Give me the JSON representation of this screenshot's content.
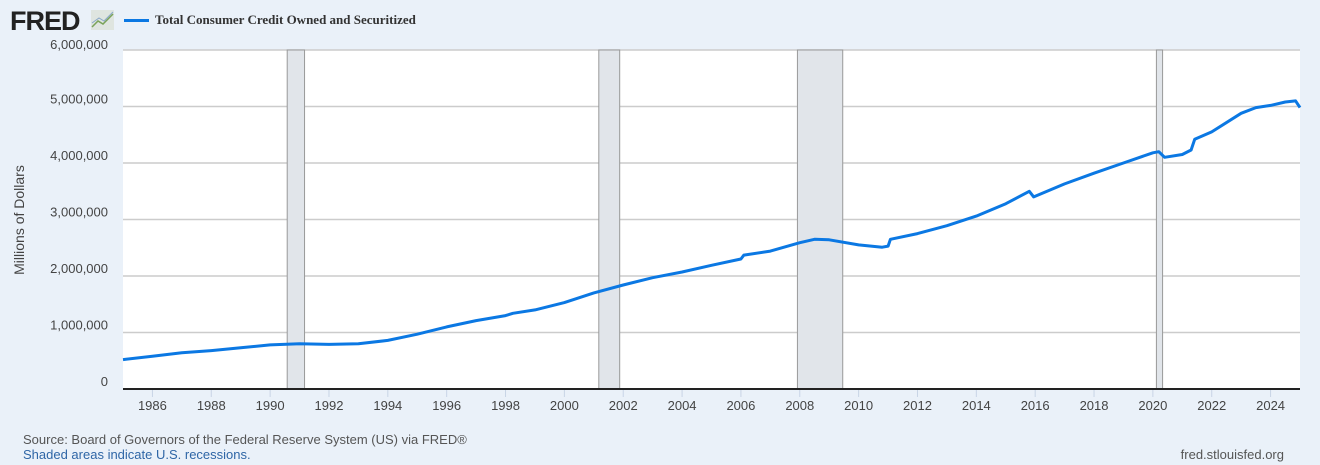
{
  "logo": {
    "text": "FRED"
  },
  "chart_data": {
    "type": "line",
    "title": "Total Consumer Credit Owned and Securitized",
    "xlabel": "",
    "ylabel": "Millions of Dollars",
    "xlim": [
      1985.0,
      2025.0
    ],
    "ylim": [
      0,
      6000000
    ],
    "yticks": [
      0,
      1000000,
      2000000,
      3000000,
      4000000,
      5000000,
      6000000
    ],
    "ytick_labels": [
      "0",
      "1,000,000",
      "2,000,000",
      "3,000,000",
      "4,000,000",
      "5,000,000",
      "6,000,000"
    ],
    "xticks": [
      1986,
      1988,
      1990,
      1992,
      1994,
      1996,
      1998,
      2000,
      2002,
      2004,
      2006,
      2008,
      2010,
      2012,
      2014,
      2016,
      2018,
      2020,
      2022,
      2024
    ],
    "xtick_labels": [
      "1986",
      "1988",
      "1990",
      "1992",
      "1994",
      "1996",
      "1998",
      "2000",
      "2002",
      "2004",
      "2006",
      "2008",
      "2010",
      "2012",
      "2014",
      "2016",
      "2018",
      "2020",
      "2022",
      "2024"
    ],
    "grid": true,
    "legend": "top-left",
    "recessions": [
      [
        1990.58,
        1991.17
      ],
      [
        2001.17,
        2001.88
      ],
      [
        2007.92,
        2009.46
      ],
      [
        2020.12,
        2020.33
      ]
    ],
    "series": [
      {
        "name": "Total Consumer Credit Owned and Securitized",
        "color": "#0b78e3",
        "x": [
          1985.0,
          1986.0,
          1987.0,
          1988.0,
          1989.0,
          1990.0,
          1991.0,
          1992.0,
          1993.0,
          1994.0,
          1995.0,
          1996.0,
          1997.0,
          1998.0,
          1998.25,
          1999.0,
          2000.0,
          2001.0,
          2002.0,
          2003.0,
          2004.0,
          2005.0,
          2006.0,
          2006.1,
          2007.0,
          2008.0,
          2008.5,
          2009.0,
          2010.0,
          2010.8,
          2011.0,
          2011.08,
          2012.0,
          2013.0,
          2014.0,
          2015.0,
          2015.8,
          2015.95,
          2017.0,
          2018.0,
          2019.0,
          2020.0,
          2020.2,
          2020.4,
          2021.0,
          2021.3,
          2021.42,
          2022.0,
          2023.0,
          2023.5,
          2024.0,
          2024.5,
          2024.85,
          2025.0
        ],
        "values": [
          520000,
          580000,
          640000,
          680000,
          730000,
          780000,
          800000,
          790000,
          800000,
          860000,
          970000,
          1100000,
          1210000,
          1300000,
          1340000,
          1400000,
          1530000,
          1700000,
          1840000,
          1970000,
          2070000,
          2190000,
          2300000,
          2370000,
          2440000,
          2590000,
          2650000,
          2640000,
          2550000,
          2510000,
          2530000,
          2650000,
          2750000,
          2890000,
          3060000,
          3280000,
          3500000,
          3400000,
          3630000,
          3820000,
          4000000,
          4180000,
          4200000,
          4100000,
          4150000,
          4230000,
          4420000,
          4550000,
          4880000,
          4980000,
          5020000,
          5080000,
          5100000,
          4980000
        ]
      }
    ]
  },
  "footer": {
    "source": "Source: Board of Governors of the Federal Reserve System (US) via FRED®",
    "shaded": "Shaded areas indicate U.S. recessions.",
    "url": "fred.stlouisfed.org"
  }
}
